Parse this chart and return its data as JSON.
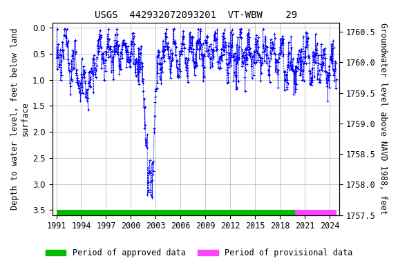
{
  "title": "USGS  442932072093201  VT-WBW    29",
  "ylabel_left": "Depth to water level, feet below land\nsurface",
  "ylabel_right": "Groundwater level above NAVD 1988, feet",
  "ylim_left": [
    3.6,
    -0.1
  ],
  "ylim_right": [
    1757.5,
    1760.65
  ],
  "xlim": [
    1990.5,
    2025.2
  ],
  "xticks": [
    1991,
    1994,
    1997,
    2000,
    2003,
    2006,
    2009,
    2012,
    2015,
    2018,
    2021,
    2024
  ],
  "yticks_left": [
    0.0,
    0.5,
    1.0,
    1.5,
    2.0,
    2.5,
    3.0,
    3.5
  ],
  "yticks_right": [
    1757.5,
    1758.0,
    1758.5,
    1759.0,
    1759.5,
    1760.0,
    1760.5
  ],
  "data_color": "#0000FF",
  "background_color": "#ffffff",
  "plot_bg_color": "#ffffff",
  "grid_color": "#b0b0b0",
  "approved_color": "#00bb00",
  "provisional_color": "#ff44ff",
  "approved_start": 1991.0,
  "approved_end": 2019.8,
  "provisional_start": 2019.8,
  "provisional_end": 2024.8,
  "legend_approved": "Period of approved data",
  "legend_provisional": "Period of provisional data",
  "bar_y": 3.55,
  "bar_height": 0.1,
  "title_fontsize": 10,
  "axis_label_fontsize": 8.5,
  "tick_fontsize": 8.5,
  "legend_fontsize": 8.5
}
